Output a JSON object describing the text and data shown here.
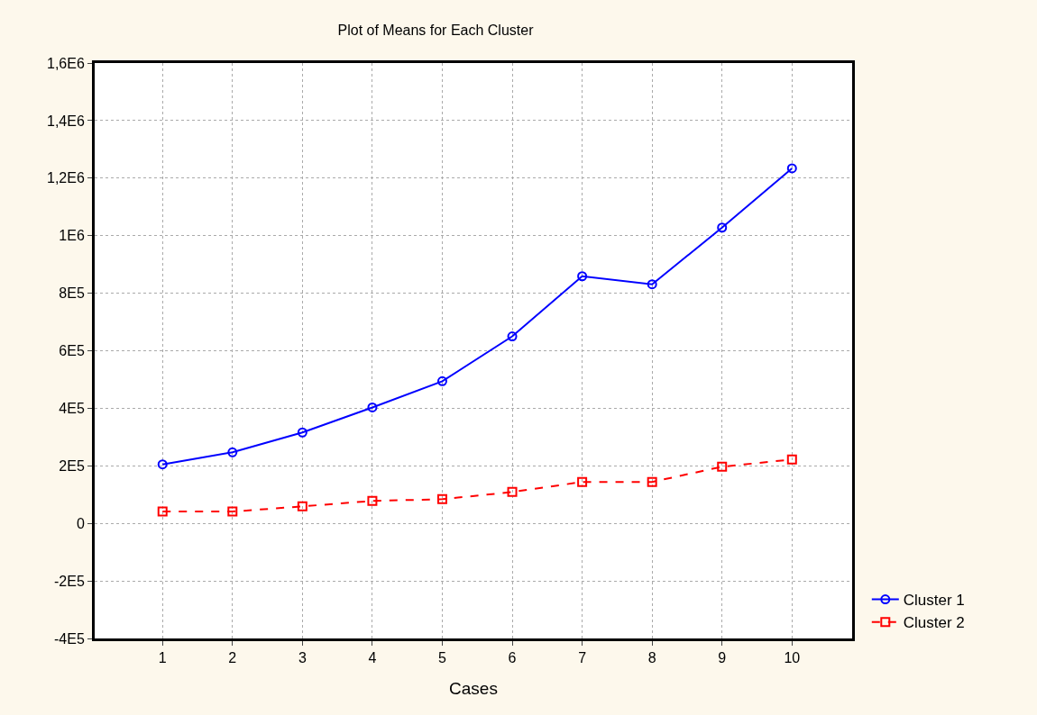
{
  "chart_data": {
    "type": "line",
    "title": "Plot of Means for Each Cluster",
    "xlabel": "Cases",
    "categories": [
      "1",
      "2",
      "3",
      "4",
      "5",
      "6",
      "7",
      "8",
      "9",
      "10"
    ],
    "series": [
      {
        "name": "Cluster 1",
        "color": "#0000ff",
        "marker": "circle",
        "line_style": "solid",
        "values": [
          205000,
          247000,
          316000,
          403000,
          494000,
          650000,
          859000,
          831000,
          1028000,
          1234000
        ]
      },
      {
        "name": "Cluster 2",
        "color": "#ff0000",
        "marker": "square",
        "line_style": "dashed",
        "values": [
          41000,
          41000,
          59000,
          78000,
          84000,
          109000,
          144000,
          144000,
          197000,
          222000
        ]
      }
    ],
    "ylim": [
      -400000,
      1600000
    ],
    "yticks": [
      {
        "value": -400000,
        "label": "-4E5"
      },
      {
        "value": -200000,
        "label": "-2E5"
      },
      0,
      {
        "value": 200000,
        "label": "2E5"
      },
      {
        "value": 400000,
        "label": "4E5"
      },
      {
        "value": 600000,
        "label": "6E5"
      },
      {
        "value": 800000,
        "label": "8E5"
      },
      {
        "value": 1000000,
        "label": "1E6"
      },
      {
        "value": 1200000,
        "label": "1,2E6"
      },
      {
        "value": 1400000,
        "label": "1,4E6"
      },
      {
        "value": 1600000,
        "label": "1,6E6"
      }
    ],
    "grid": true,
    "legend": "bottom right"
  }
}
